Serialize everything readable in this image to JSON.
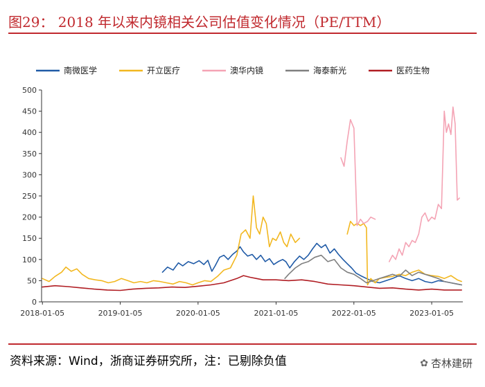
{
  "title": "图29： 2018 年以来内镜相关公司估值变化情况（PE/TTM）",
  "source": "资料来源：Wind，浙商证券研究所，注：已剔除负值",
  "watermark": "杏林建研",
  "chart_data": {
    "type": "line",
    "ylim": [
      0,
      500
    ],
    "yticks": [
      0,
      50,
      100,
      150,
      200,
      250,
      300,
      350,
      400,
      450,
      500
    ],
    "xrange": [
      "2018-01-01",
      "2023-05-31"
    ],
    "xticks": [
      "2018-01-05",
      "2019-01-05",
      "2020-01-05",
      "2021-01-05",
      "2022-01-05",
      "2023-01-05"
    ],
    "legend_position": "top",
    "series": [
      {
        "name": "南微医学",
        "color": "#1f5aa6",
        "points": [
          [
            "2019-07-22",
            70
          ],
          [
            "2019-08-15",
            82
          ],
          [
            "2019-09-10",
            75
          ],
          [
            "2019-10-05",
            92
          ],
          [
            "2019-10-25",
            85
          ],
          [
            "2019-11-20",
            95
          ],
          [
            "2019-12-15",
            90
          ],
          [
            "2020-01-10",
            97
          ],
          [
            "2020-02-01",
            88
          ],
          [
            "2020-02-20",
            98
          ],
          [
            "2020-03-10",
            72
          ],
          [
            "2020-03-25",
            85
          ],
          [
            "2020-04-15",
            105
          ],
          [
            "2020-05-05",
            110
          ],
          [
            "2020-05-25",
            100
          ],
          [
            "2020-06-15",
            112
          ],
          [
            "2020-07-05",
            120
          ],
          [
            "2020-07-20",
            130
          ],
          [
            "2020-08-05",
            118
          ],
          [
            "2020-08-25",
            108
          ],
          [
            "2020-09-15",
            112
          ],
          [
            "2020-10-05",
            100
          ],
          [
            "2020-10-25",
            110
          ],
          [
            "2020-11-15",
            95
          ],
          [
            "2020-12-05",
            102
          ],
          [
            "2020-12-25",
            88
          ],
          [
            "2021-01-15",
            95
          ],
          [
            "2021-02-05",
            100
          ],
          [
            "2021-02-20",
            95
          ],
          [
            "2021-03-10",
            80
          ],
          [
            "2021-04-01",
            95
          ],
          [
            "2021-04-25",
            108
          ],
          [
            "2021-05-15",
            100
          ],
          [
            "2021-06-05",
            110
          ],
          [
            "2021-06-25",
            125
          ],
          [
            "2021-07-15",
            138
          ],
          [
            "2021-08-05",
            128
          ],
          [
            "2021-08-25",
            135
          ],
          [
            "2021-09-15",
            115
          ],
          [
            "2021-10-05",
            125
          ],
          [
            "2021-10-25",
            112
          ],
          [
            "2021-11-15",
            100
          ],
          [
            "2021-12-05",
            90
          ],
          [
            "2021-12-25",
            80
          ],
          [
            "2022-01-15",
            68
          ],
          [
            "2022-02-05",
            62
          ],
          [
            "2022-03-05",
            55
          ],
          [
            "2022-04-05",
            48
          ],
          [
            "2022-05-05",
            45
          ],
          [
            "2022-06-05",
            50
          ],
          [
            "2022-07-05",
            55
          ],
          [
            "2022-08-05",
            62
          ],
          [
            "2022-09-05",
            55
          ],
          [
            "2022-10-05",
            50
          ],
          [
            "2022-11-05",
            55
          ],
          [
            "2022-12-05",
            48
          ],
          [
            "2023-01-05",
            45
          ],
          [
            "2023-02-05",
            50
          ],
          [
            "2023-03-05",
            48
          ],
          [
            "2023-04-05",
            45
          ],
          [
            "2023-05-05",
            42
          ],
          [
            "2023-05-25",
            40
          ]
        ]
      },
      {
        "name": "开立医疗",
        "color": "#f2b71f",
        "points": [
          [
            "2018-01-05",
            55
          ],
          [
            "2018-02-05",
            48
          ],
          [
            "2018-03-05",
            60
          ],
          [
            "2018-04-05",
            70
          ],
          [
            "2018-04-25",
            82
          ],
          [
            "2018-05-20",
            72
          ],
          [
            "2018-06-15",
            78
          ],
          [
            "2018-07-10",
            65
          ],
          [
            "2018-08-10",
            55
          ],
          [
            "2018-09-10",
            52
          ],
          [
            "2018-10-10",
            50
          ],
          [
            "2018-11-10",
            45
          ],
          [
            "2018-12-10",
            48
          ],
          [
            "2019-01-10",
            55
          ],
          [
            "2019-02-10",
            50
          ],
          [
            "2019-03-10",
            45
          ],
          [
            "2019-04-10",
            48
          ],
          [
            "2019-05-10",
            45
          ],
          [
            "2019-06-10",
            50
          ],
          [
            "2019-07-10",
            48
          ],
          [
            "2019-08-10",
            45
          ],
          [
            "2019-09-10",
            42
          ],
          [
            "2019-10-10",
            48
          ],
          [
            "2019-11-10",
            45
          ],
          [
            "2019-12-10",
            40
          ],
          [
            "2020-01-05",
            45
          ],
          [
            "2020-02-05",
            50
          ],
          [
            "2020-03-05",
            48
          ],
          [
            "2020-04-05",
            60
          ],
          [
            "2020-05-05",
            75
          ],
          [
            "2020-06-05",
            80
          ],
          [
            "2020-07-05",
            110
          ],
          [
            "2020-07-25",
            160
          ],
          [
            "2020-08-15",
            170
          ],
          [
            "2020-09-05",
            150
          ],
          [
            "2020-09-20",
            250
          ],
          [
            "2020-10-05",
            175
          ],
          [
            "2020-10-20",
            160
          ],
          [
            "2020-11-05",
            200
          ],
          [
            "2020-11-20",
            185
          ],
          [
            "2020-12-05",
            130
          ],
          [
            "2020-12-20",
            150
          ],
          [
            "2021-01-05",
            145
          ],
          [
            "2021-01-25",
            165
          ],
          [
            "2021-02-10",
            140
          ],
          [
            "2021-02-25",
            130
          ],
          [
            "2021-03-15",
            160
          ],
          [
            "2021-04-05",
            140
          ],
          [
            "2021-04-25",
            150
          ]
        ]
      },
      {
        "name": "开立医疗",
        "color": "#f2b71f",
        "legend": false,
        "points": [
          [
            "2021-12-05",
            160
          ],
          [
            "2021-12-20",
            190
          ],
          [
            "2022-01-05",
            180
          ],
          [
            "2022-01-20",
            185
          ],
          [
            "2022-02-05",
            180
          ],
          [
            "2022-02-20",
            185
          ],
          [
            "2022-03-05",
            175
          ],
          [
            "2022-03-10",
            40
          ],
          [
            "2022-03-25",
            55
          ],
          [
            "2022-04-15",
            45
          ],
          [
            "2022-05-05",
            55
          ],
          [
            "2022-06-05",
            58
          ],
          [
            "2022-07-05",
            60
          ],
          [
            "2022-08-05",
            65
          ],
          [
            "2022-09-05",
            62
          ],
          [
            "2022-10-05",
            70
          ],
          [
            "2022-11-05",
            75
          ],
          [
            "2022-12-05",
            65
          ],
          [
            "2023-01-05",
            62
          ],
          [
            "2023-02-05",
            60
          ],
          [
            "2023-03-05",
            55
          ],
          [
            "2023-04-05",
            62
          ],
          [
            "2023-05-05",
            52
          ],
          [
            "2023-05-25",
            48
          ]
        ]
      },
      {
        "name": "澳华内镜",
        "color": "#f4a3b4",
        "points": [
          [
            "2021-11-05",
            340
          ],
          [
            "2021-11-20",
            320
          ],
          [
            "2021-12-05",
            380
          ],
          [
            "2021-12-20",
            430
          ],
          [
            "2022-01-05",
            410
          ],
          [
            "2022-01-20",
            180
          ],
          [
            "2022-02-05",
            195
          ],
          [
            "2022-02-20",
            185
          ],
          [
            "2022-03-10",
            190
          ],
          [
            "2022-03-25",
            200
          ],
          [
            "2022-04-15",
            195
          ]
        ]
      },
      {
        "name": "澳华内镜",
        "color": "#f4a3b4",
        "legend": false,
        "points": [
          [
            "2022-06-20",
            95
          ],
          [
            "2022-07-05",
            110
          ],
          [
            "2022-07-20",
            100
          ],
          [
            "2022-08-05",
            125
          ],
          [
            "2022-08-20",
            110
          ],
          [
            "2022-09-05",
            140
          ],
          [
            "2022-09-20",
            130
          ],
          [
            "2022-10-05",
            145
          ],
          [
            "2022-10-20",
            140
          ],
          [
            "2022-11-05",
            160
          ],
          [
            "2022-11-20",
            200
          ],
          [
            "2022-12-05",
            210
          ],
          [
            "2022-12-20",
            190
          ],
          [
            "2023-01-05",
            200
          ],
          [
            "2023-01-20",
            195
          ],
          [
            "2023-02-05",
            230
          ],
          [
            "2023-02-20",
            220
          ],
          [
            "2023-03-05",
            450
          ],
          [
            "2023-03-15",
            400
          ],
          [
            "2023-03-25",
            420
          ],
          [
            "2023-04-05",
            395
          ],
          [
            "2023-04-15",
            460
          ],
          [
            "2023-04-25",
            420
          ],
          [
            "2023-05-05",
            240
          ],
          [
            "2023-05-15",
            245
          ]
        ]
      },
      {
        "name": "海泰新光",
        "color": "#7f7f7f",
        "points": [
          [
            "2021-02-15",
            55
          ],
          [
            "2021-03-05",
            65
          ],
          [
            "2021-04-05",
            80
          ],
          [
            "2021-05-05",
            90
          ],
          [
            "2021-06-05",
            95
          ],
          [
            "2021-07-05",
            105
          ],
          [
            "2021-08-05",
            110
          ],
          [
            "2021-09-05",
            95
          ],
          [
            "2021-10-05",
            100
          ],
          [
            "2021-11-05",
            80
          ],
          [
            "2021-12-05",
            70
          ],
          [
            "2022-01-05",
            65
          ],
          [
            "2022-02-05",
            55
          ],
          [
            "2022-03-05",
            45
          ],
          [
            "2022-04-05",
            50
          ],
          [
            "2022-05-05",
            55
          ],
          [
            "2022-06-05",
            60
          ],
          [
            "2022-07-05",
            65
          ],
          [
            "2022-08-05",
            60
          ],
          [
            "2022-09-05",
            75
          ],
          [
            "2022-10-05",
            62
          ],
          [
            "2022-11-05",
            70
          ],
          [
            "2022-12-05",
            65
          ],
          [
            "2023-01-05",
            60
          ],
          [
            "2023-02-05",
            55
          ],
          [
            "2023-03-05",
            48
          ],
          [
            "2023-04-05",
            45
          ],
          [
            "2023-05-05",
            42
          ],
          [
            "2023-05-25",
            40
          ]
        ]
      },
      {
        "name": "医药生物",
        "color": "#b01c22",
        "points": [
          [
            "2018-01-05",
            35
          ],
          [
            "2018-03-05",
            38
          ],
          [
            "2018-05-05",
            36
          ],
          [
            "2018-07-05",
            33
          ],
          [
            "2018-09-05",
            30
          ],
          [
            "2018-11-05",
            28
          ],
          [
            "2019-01-05",
            27
          ],
          [
            "2019-03-05",
            30
          ],
          [
            "2019-05-05",
            32
          ],
          [
            "2019-07-05",
            33
          ],
          [
            "2019-09-05",
            35
          ],
          [
            "2019-11-05",
            34
          ],
          [
            "2020-01-05",
            37
          ],
          [
            "2020-03-05",
            40
          ],
          [
            "2020-05-05",
            45
          ],
          [
            "2020-07-05",
            55
          ],
          [
            "2020-08-05",
            62
          ],
          [
            "2020-09-05",
            58
          ],
          [
            "2020-10-05",
            55
          ],
          [
            "2020-11-05",
            52
          ],
          [
            "2021-01-05",
            52
          ],
          [
            "2021-03-05",
            50
          ],
          [
            "2021-05-05",
            52
          ],
          [
            "2021-07-05",
            48
          ],
          [
            "2021-09-05",
            42
          ],
          [
            "2021-11-05",
            40
          ],
          [
            "2022-01-05",
            38
          ],
          [
            "2022-03-05",
            35
          ],
          [
            "2022-05-05",
            32
          ],
          [
            "2022-07-05",
            33
          ],
          [
            "2022-09-05",
            30
          ],
          [
            "2022-11-05",
            28
          ],
          [
            "2023-01-05",
            30
          ],
          [
            "2023-03-05",
            28
          ],
          [
            "2023-05-25",
            28
          ]
        ]
      }
    ]
  }
}
